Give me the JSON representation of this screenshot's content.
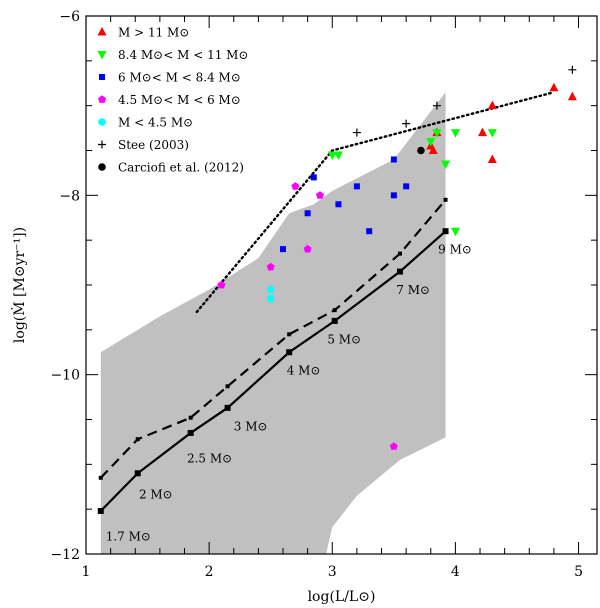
{
  "chart_data": {
    "type": "scatter",
    "title": "",
    "xlabel": "log(L/L⊙)",
    "ylabel": "log(Ṁ [M⊙yr⁻¹])",
    "xlim": [
      1.0,
      5.15
    ],
    "ylim": [
      -12.0,
      -6.0
    ],
    "x_ticks": [
      1,
      2,
      3,
      4,
      5
    ],
    "y_ticks": [
      -12,
      -10,
      -8,
      -6
    ],
    "shaded_region": {
      "color": "#c0c0c0",
      "polygon": [
        [
          1.12,
          -9.75
        ],
        [
          1.3,
          -9.6
        ],
        [
          1.6,
          -9.35
        ],
        [
          2.0,
          -9.05
        ],
        [
          2.4,
          -8.7
        ],
        [
          2.65,
          -8.2
        ],
        [
          2.85,
          -8.1
        ],
        [
          3.0,
          -7.95
        ],
        [
          3.5,
          -7.6
        ],
        [
          3.92,
          -6.85
        ],
        [
          3.92,
          -10.7
        ],
        [
          3.55,
          -10.95
        ],
        [
          3.2,
          -11.35
        ],
        [
          3.0,
          -11.7
        ],
        [
          2.95,
          -12.0
        ],
        [
          1.12,
          -12.0
        ]
      ]
    },
    "series": [
      {
        "name": "M > 11 M⊙",
        "marker": "triangle-up",
        "color": "#ff0000",
        "points": [
          [
            3.8,
            -7.45
          ],
          [
            3.82,
            -7.5
          ],
          [
            3.85,
            -7.3
          ],
          [
            4.22,
            -7.3
          ],
          [
            4.3,
            -7.0
          ],
          [
            4.3,
            -7.6
          ],
          [
            4.8,
            -6.8
          ],
          [
            4.95,
            -6.9
          ]
        ]
      },
      {
        "name": "8.4 M⊙< M < 11 M⊙",
        "marker": "triangle-down",
        "color": "#00ff00",
        "points": [
          [
            3.0,
            -7.55
          ],
          [
            3.05,
            -7.55
          ],
          [
            3.8,
            -7.4
          ],
          [
            3.85,
            -7.3
          ],
          [
            3.92,
            -7.65
          ],
          [
            4.0,
            -7.3
          ],
          [
            4.3,
            -7.3
          ],
          [
            4.0,
            -8.4
          ]
        ]
      },
      {
        "name": "6 M⊙< M < 8.4 M⊙",
        "marker": "square",
        "color": "#0000ff",
        "points": [
          [
            2.6,
            -8.6
          ],
          [
            2.85,
            -7.8
          ],
          [
            2.8,
            -8.2
          ],
          [
            3.05,
            -8.1
          ],
          [
            3.2,
            -7.9
          ],
          [
            3.3,
            -8.4
          ],
          [
            3.5,
            -7.6
          ],
          [
            3.5,
            -8.0
          ],
          [
            3.6,
            -7.9
          ]
        ]
      },
      {
        "name": "4.5 M⊙< M < 6 M⊙",
        "marker": "pentagon",
        "color": "#ff00ff",
        "points": [
          [
            2.1,
            -9.0
          ],
          [
            2.5,
            -8.8
          ],
          [
            2.7,
            -7.9
          ],
          [
            2.8,
            -8.6
          ],
          [
            2.9,
            -8.0
          ],
          [
            3.5,
            -10.8
          ]
        ]
      },
      {
        "name": "M < 4.5 M⊙",
        "marker": "circle",
        "color": "#00ffff",
        "points": [
          [
            2.5,
            -9.05
          ],
          [
            2.5,
            -9.15
          ]
        ]
      },
      {
        "name": "Stee (2003)",
        "marker": "plus",
        "color": "#000000",
        "points": [
          [
            3.2,
            -7.3
          ],
          [
            3.6,
            -7.2
          ],
          [
            3.85,
            -7.0
          ],
          [
            4.95,
            -6.6
          ]
        ]
      },
      {
        "name": "Carciofi et al. (2012)",
        "marker": "filled-circle",
        "color": "#000000",
        "points": [
          [
            3.72,
            -7.5
          ]
        ]
      }
    ],
    "lines": [
      {
        "name": "dotted-fit",
        "style": "dotted",
        "points": [
          [
            1.9,
            -9.3
          ],
          [
            3.0,
            -7.5
          ],
          [
            4.8,
            -6.85
          ]
        ]
      },
      {
        "name": "dashed-track",
        "style": "dashed",
        "points": [
          [
            1.12,
            -11.15
          ],
          [
            1.42,
            -10.72
          ],
          [
            1.85,
            -10.48
          ],
          [
            2.15,
            -10.13
          ],
          [
            2.65,
            -9.55
          ],
          [
            3.02,
            -9.28
          ],
          [
            3.55,
            -8.65
          ],
          [
            3.92,
            -8.05
          ]
        ]
      },
      {
        "name": "solid-track",
        "style": "solid",
        "points": [
          [
            1.12,
            -11.52
          ],
          [
            1.42,
            -11.1
          ],
          [
            1.85,
            -10.65
          ],
          [
            2.15,
            -10.37
          ],
          [
            2.65,
            -9.75
          ],
          [
            3.02,
            -9.4
          ],
          [
            3.55,
            -8.85
          ],
          [
            3.92,
            -8.4
          ]
        ]
      }
    ],
    "mass_labels": [
      {
        "text": "1.7 M⊙",
        "x": 1.16,
        "y": -11.85
      },
      {
        "text": "2 M⊙",
        "x": 1.43,
        "y": -11.38
      },
      {
        "text": "2.5 M⊙",
        "x": 1.82,
        "y": -10.98
      },
      {
        "text": "3 M⊙",
        "x": 2.2,
        "y": -10.62
      },
      {
        "text": "4 M⊙",
        "x": 2.63,
        "y": -10.0
      },
      {
        "text": "5 M⊙",
        "x": 2.96,
        "y": -9.65
      },
      {
        "text": "7 M⊙",
        "x": 3.52,
        "y": -9.1
      },
      {
        "text": "9 M⊙",
        "x": 3.86,
        "y": -8.65
      }
    ],
    "legend_position": "top-left"
  }
}
